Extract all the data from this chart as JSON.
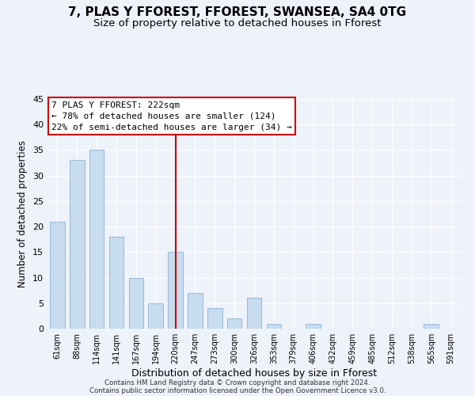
{
  "title": "7, PLAS Y FFOREST, FFOREST, SWANSEA, SA4 0TG",
  "subtitle": "Size of property relative to detached houses in Fforest",
  "xlabel": "Distribution of detached houses by size in Fforest",
  "ylabel": "Number of detached properties",
  "bar_color": "#c8dcf0",
  "bar_edge_color": "#a0bcd8",
  "categories": [
    "61sqm",
    "88sqm",
    "114sqm",
    "141sqm",
    "167sqm",
    "194sqm",
    "220sqm",
    "247sqm",
    "273sqm",
    "300sqm",
    "326sqm",
    "353sqm",
    "379sqm",
    "406sqm",
    "432sqm",
    "459sqm",
    "485sqm",
    "512sqm",
    "538sqm",
    "565sqm",
    "591sqm"
  ],
  "values": [
    21,
    33,
    35,
    18,
    10,
    5,
    15,
    7,
    4,
    2,
    6,
    1,
    0,
    1,
    0,
    0,
    0,
    0,
    0,
    1,
    0
  ],
  "vline_x_index": 6,
  "annotation_title": "7 PLAS Y FFOREST: 222sqm",
  "annotation_line1": "← 78% of detached houses are smaller (124)",
  "annotation_line2": "22% of semi-detached houses are larger (34) →",
  "ylim": [
    0,
    45
  ],
  "yticks": [
    0,
    5,
    10,
    15,
    20,
    25,
    30,
    35,
    40,
    45
  ],
  "footer_line1": "Contains HM Land Registry data © Crown copyright and database right 2024.",
  "footer_line2": "Contains public sector information licensed under the Open Government Licence v3.0.",
  "background_color": "#eef2fb",
  "title_fontsize": 11,
  "subtitle_fontsize": 9.5,
  "vline_color": "#cc0000",
  "grid_color": "#ffffff"
}
